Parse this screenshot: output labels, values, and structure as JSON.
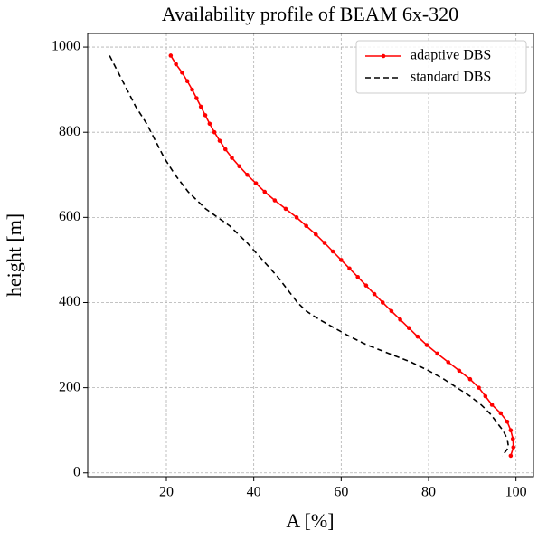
{
  "chart_data": {
    "type": "line",
    "title": "Availability profile of BEAM 6x-320",
    "xlabel": "A [%]",
    "ylabel": "height [m]",
    "xlim": [
      2,
      104
    ],
    "ylim": [
      -9,
      1032
    ],
    "xticks": [
      20,
      40,
      60,
      80,
      100
    ],
    "yticks": [
      0,
      200,
      400,
      600,
      800,
      1000
    ],
    "grid": true,
    "legend": "upper right",
    "series": [
      {
        "name": "adaptive DBS",
        "color": "#ff0000",
        "style": "solid",
        "markers": true,
        "x": [
          21,
          22.2,
          23.6,
          24.8,
          25.9,
          26.9,
          27.9,
          28.9,
          29.9,
          31,
          32.2,
          33.5,
          35,
          36.7,
          38.5,
          40.5,
          42.5,
          44.8,
          47.3,
          49.8,
          52,
          54.2,
          56.2,
          58.1,
          60,
          61.9,
          63.8,
          65.7,
          67.6,
          69.5,
          71.5,
          73.5,
          75.5,
          77.5,
          79.6,
          82,
          84.5,
          87,
          89.5,
          91.5,
          93,
          94.5,
          96.5,
          98,
          98.8,
          99.3,
          99.4,
          98.8
        ],
        "y": [
          980,
          960,
          940,
          920,
          900,
          880,
          860,
          840,
          820,
          800,
          780,
          760,
          740,
          720,
          700,
          680,
          660,
          640,
          620,
          600,
          580,
          560,
          540,
          520,
          500,
          480,
          460,
          440,
          420,
          400,
          380,
          360,
          340,
          320,
          300,
          280,
          260,
          240,
          220,
          200,
          180,
          160,
          140,
          120,
          100,
          80,
          60,
          40
        ]
      },
      {
        "name": "standard DBS",
        "color": "#000000",
        "style": "dashed",
        "markers": false,
        "x": [
          7,
          9,
          11,
          13,
          15.5,
          17.5,
          19.5,
          22,
          25,
          29,
          34.5,
          38.5,
          42,
          45.5,
          48.5,
          50,
          52,
          55,
          58.5,
          62,
          66,
          71,
          76,
          80,
          83.5,
          86.5,
          89.5,
          92,
          94,
          95.5,
          97,
          98,
          98.3,
          97.6,
          96.8
        ],
        "y": [
          980,
          940,
          900,
          860,
          820,
          780,
          740,
          700,
          660,
          620,
          580,
          540,
          500,
          460,
          420,
          400,
          380,
          360,
          340,
          320,
          300,
          280,
          260,
          240,
          220,
          200,
          180,
          160,
          140,
          120,
          100,
          80,
          60,
          50,
          40
        ]
      }
    ]
  }
}
